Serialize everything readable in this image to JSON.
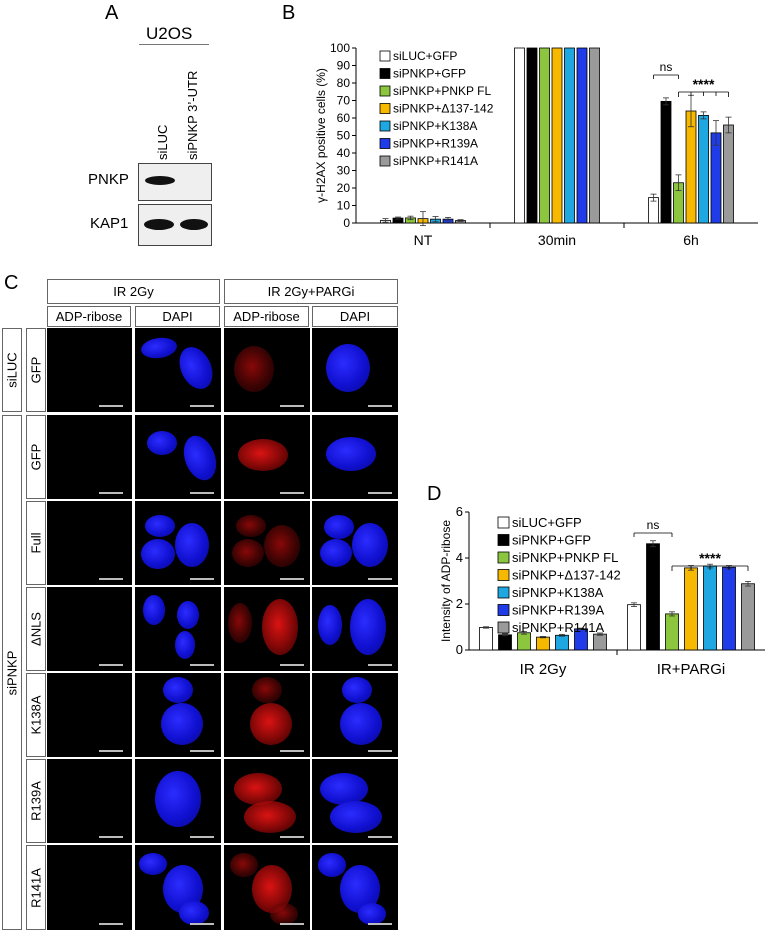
{
  "panels": {
    "a": "A",
    "b": "B",
    "c": "C",
    "d": "D"
  },
  "panel_a": {
    "cell_line": "U2OS",
    "lanes": [
      "siLUC",
      "siPNKP 3’-UTR"
    ],
    "blots": [
      "PNKP",
      "KAP1"
    ]
  },
  "panel_c": {
    "conditions": [
      "IR 2Gy",
      "IR 2Gy+PARGi"
    ],
    "channels": [
      "ADP-ribose",
      "DAPI",
      "ADP-ribose",
      "DAPI"
    ],
    "groups": [
      "siLUC",
      "siPNKP"
    ],
    "rows": [
      "GFP",
      "GFP",
      "Full",
      "ΔNLS",
      "K138A",
      "R139A",
      "R141A"
    ]
  },
  "chart_data": [
    {
      "type": "bar",
      "panel": "B",
      "ylabel": "γ-H2AX positive cells (%)",
      "ylim": [
        0,
        100
      ],
      "yticks": [
        "0",
        "10",
        "20",
        "30",
        "40",
        "50",
        "60",
        "70",
        "80",
        "90",
        "100"
      ],
      "categories": [
        "NT",
        "30min",
        "6h"
      ],
      "series": [
        {
          "name": "siLUC+GFP",
          "color": "#ffffff",
          "values": [
            1.5,
            100,
            14.5
          ],
          "errors": [
            1,
            0,
            2
          ]
        },
        {
          "name": "siPNKP+GFP",
          "color": "#000000",
          "values": [
            2.8,
            100,
            69.5
          ],
          "errors": [
            0.6,
            0,
            2
          ]
        },
        {
          "name": "siPNKP+PNKP FL",
          "color": "#8cc63f",
          "values": [
            2.9,
            100,
            23
          ],
          "errors": [
            1,
            0,
            4.5
          ]
        },
        {
          "name": "siPNKP+Δ137-142",
          "color": "#f7b800",
          "values": [
            2.5,
            100,
            64
          ],
          "errors": [
            4,
            0,
            9
          ]
        },
        {
          "name": "siPNKP+K138A",
          "color": "#1ea7e1",
          "values": [
            2.2,
            100,
            61.5
          ],
          "errors": [
            1.5,
            0,
            2
          ]
        },
        {
          "name": "siPNKP+R139A",
          "color": "#1f3ce8",
          "values": [
            2.2,
            100,
            51.5
          ],
          "errors": [
            1,
            0,
            7
          ]
        },
        {
          "name": "siPNKP+R141A",
          "color": "#9a9a9a",
          "values": [
            1.4,
            100,
            56
          ],
          "errors": [
            0.5,
            0,
            4.5
          ]
        }
      ],
      "annotations": [
        "ns",
        "****"
      ]
    },
    {
      "type": "bar",
      "panel": "D",
      "ylabel": "Intensity of ADP-ribose",
      "ylim": [
        0,
        6
      ],
      "yticks": [
        "0",
        "2",
        "4",
        "6"
      ],
      "categories": [
        "IR 2Gy",
        "IR+PARGi"
      ],
      "series": [
        {
          "name": "siLUC+GFP",
          "color": "#ffffff",
          "values": [
            0.98,
            1.97
          ],
          "errors": [
            0.03,
            0.08
          ]
        },
        {
          "name": "siPNKP+GFP",
          "color": "#000000",
          "values": [
            0.66,
            4.62
          ],
          "errors": [
            0.04,
            0.13
          ]
        },
        {
          "name": "siPNKP+PNKP FL",
          "color": "#8cc63f",
          "values": [
            0.75,
            1.57
          ],
          "errors": [
            0.06,
            0.09
          ]
        },
        {
          "name": "siPNKP+Δ137-142",
          "color": "#f7b800",
          "values": [
            0.56,
            3.57
          ],
          "errors": [
            0.03,
            0.1
          ]
        },
        {
          "name": "siPNKP+K138A",
          "color": "#1ea7e1",
          "values": [
            0.64,
            3.65
          ],
          "errors": [
            0.04,
            0.08
          ]
        },
        {
          "name": "siPNKP+R139A",
          "color": "#1f3ce8",
          "values": [
            0.92,
            3.6
          ],
          "errors": [
            0.03,
            0.07
          ]
        },
        {
          "name": "siPNKP+R141A",
          "color": "#9a9a9a",
          "values": [
            0.69,
            2.88
          ],
          "errors": [
            0.05,
            0.1
          ]
        }
      ],
      "annotations": [
        "ns",
        "****"
      ]
    }
  ]
}
